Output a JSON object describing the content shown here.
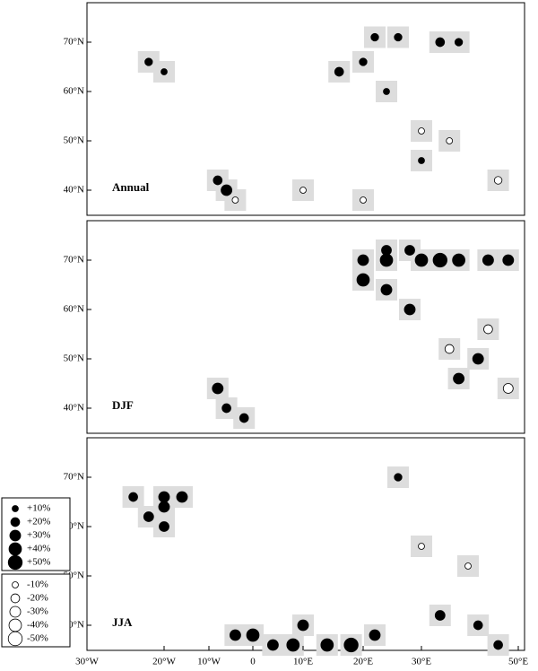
{
  "lon_ticks": [
    {
      "value": -30,
      "label": "30°W"
    },
    {
      "value": -20,
      "label": "20°W"
    },
    {
      "value": -10,
      "label": "10°W"
    },
    {
      "value": 0,
      "label": "0"
    },
    {
      "value": 10,
      "label": "10°E"
    },
    {
      "value": 20,
      "label": "20°E"
    },
    {
      "value": 30,
      "label": "30°E"
    },
    {
      "value": 50,
      "label": "50°E"
    }
  ],
  "lat_ticks": [
    {
      "value": 70,
      "label": "70°N"
    },
    {
      "value": 60,
      "label": "60°N"
    },
    {
      "value": 50,
      "label": "50°N"
    },
    {
      "value": 40,
      "label": "40°N"
    }
  ],
  "panels": [
    {
      "label": "Annual",
      "points": [
        {
          "lon": 22,
          "lat": 71,
          "value": 15
        },
        {
          "lon": 26,
          "lat": 71,
          "value": 15
        },
        {
          "lon": 34,
          "lat": 70,
          "value": 20
        },
        {
          "lon": 38,
          "lat": 70,
          "value": 15
        },
        {
          "lon": 16,
          "lat": 64,
          "value": 20
        },
        {
          "lon": 20,
          "lat": 66,
          "value": 15
        },
        {
          "lon": -22,
          "lat": 66,
          "value": 15
        },
        {
          "lon": -20,
          "lat": 64,
          "value": 10
        },
        {
          "lon": 24,
          "lat": 60,
          "value": 10
        },
        {
          "lon": 30,
          "lat": 52,
          "value": -10
        },
        {
          "lon": 36,
          "lat": 50,
          "value": -10
        },
        {
          "lon": 46,
          "lat": 42,
          "value": -15
        },
        {
          "lon": -8,
          "lat": 42,
          "value": 20
        },
        {
          "lon": -6,
          "lat": 40,
          "value": 30
        },
        {
          "lon": -4,
          "lat": 38,
          "value": -10
        },
        {
          "lon": 10,
          "lat": 40,
          "value": -10
        },
        {
          "lon": 20,
          "lat": 38,
          "value": -10
        },
        {
          "lon": 30,
          "lat": 46,
          "value": 10
        }
      ]
    },
    {
      "label": "DJF",
      "points": [
        {
          "lon": 24,
          "lat": 72,
          "value": 25
        },
        {
          "lon": 28,
          "lat": 72,
          "value": 25
        },
        {
          "lon": 20,
          "lat": 70,
          "value": 30
        },
        {
          "lon": 24,
          "lat": 70,
          "value": 40
        },
        {
          "lon": 30,
          "lat": 70,
          "value": 40
        },
        {
          "lon": 34,
          "lat": 70,
          "value": 50
        },
        {
          "lon": 38,
          "lat": 70,
          "value": 40
        },
        {
          "lon": 44,
          "lat": 70,
          "value": 30
        },
        {
          "lon": 48,
          "lat": 70,
          "value": 30
        },
        {
          "lon": 20,
          "lat": 66,
          "value": 40
        },
        {
          "lon": 24,
          "lat": 64,
          "value": 30
        },
        {
          "lon": 28,
          "lat": 60,
          "value": 30
        },
        {
          "lon": 36,
          "lat": 52,
          "value": -20
        },
        {
          "lon": 44,
          "lat": 56,
          "value": -20
        },
        {
          "lon": 42,
          "lat": 50,
          "value": 30
        },
        {
          "lon": 38,
          "lat": 46,
          "value": 30
        },
        {
          "lon": -8,
          "lat": 44,
          "value": 30
        },
        {
          "lon": -6,
          "lat": 40,
          "value": 20
        },
        {
          "lon": -2,
          "lat": 38,
          "value": 20
        },
        {
          "lon": 48,
          "lat": 44,
          "value": -25
        }
      ]
    },
    {
      "label": "JJA",
      "points": [
        {
          "lon": -24,
          "lat": 66,
          "value": 20
        },
        {
          "lon": -20,
          "lat": 66,
          "value": 30
        },
        {
          "lon": -16,
          "lat": 66,
          "value": 30
        },
        {
          "lon": -20,
          "lat": 64,
          "value": 30
        },
        {
          "lon": -22,
          "lat": 62,
          "value": 25
        },
        {
          "lon": -20,
          "lat": 60,
          "value": 25
        },
        {
          "lon": 26,
          "lat": 70,
          "value": 15
        },
        {
          "lon": 30,
          "lat": 56,
          "value": -10
        },
        {
          "lon": 40,
          "lat": 52,
          "value": -10
        },
        {
          "lon": -4,
          "lat": 38,
          "value": 30
        },
        {
          "lon": 0,
          "lat": 38,
          "value": 40
        },
        {
          "lon": 4,
          "lat": 36,
          "value": 30
        },
        {
          "lon": 10,
          "lat": 40,
          "value": 30
        },
        {
          "lon": 14,
          "lat": 36,
          "value": 40
        },
        {
          "lon": 18,
          "lat": 36,
          "value": 50
        },
        {
          "lon": 22,
          "lat": 38,
          "value": 30
        },
        {
          "lon": 34,
          "lat": 42,
          "value": 25
        },
        {
          "lon": 42,
          "lat": 40,
          "value": 20
        },
        {
          "lon": 46,
          "lat": 36,
          "value": 20
        },
        {
          "lon": 8,
          "lat": 36,
          "value": 40
        }
      ]
    }
  ],
  "legend": [
    {
      "value": 10,
      "label": "+10%"
    },
    {
      "value": 20,
      "label": "+20%"
    },
    {
      "value": 30,
      "label": "+30%"
    },
    {
      "value": 40,
      "label": "+40%"
    },
    {
      "value": 50,
      "label": "+50%"
    },
    {
      "value": -10,
      "label": "-10%"
    },
    {
      "value": -20,
      "label": "-20%"
    },
    {
      "value": -30,
      "label": "-30%"
    },
    {
      "value": -40,
      "label": "-40%"
    },
    {
      "value": -50,
      "label": "-50%"
    }
  ]
}
